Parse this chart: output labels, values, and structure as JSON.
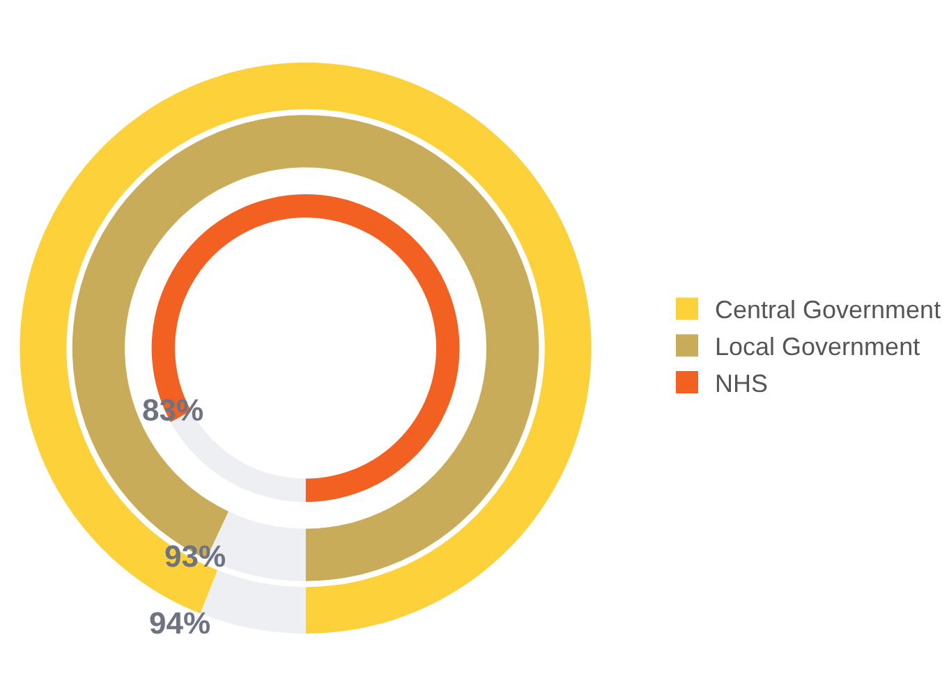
{
  "chart_data": [
    {
      "type": "donut",
      "legend": "right",
      "categories": [
        "Central Government",
        null
      ],
      "colors": [
        "#fdd13a",
        "#eeeff2"
      ],
      "values": [
        94,
        6
      ],
      "value_labels": [
        "94%",
        null
      ]
    },
    {
      "type": "donut",
      "legend": "right",
      "categories": [
        "Local Government",
        null
      ],
      "colors": [
        "#c9ac5a",
        "#eeeff2"
      ],
      "values": [
        93,
        7
      ],
      "value_labels": [
        "93%",
        null
      ]
    },
    {
      "type": "donut",
      "legend": "right",
      "categories": [
        "NHS",
        null
      ],
      "colors": [
        "#f26122",
        "#eeeff2"
      ],
      "values": [
        83,
        17
      ],
      "value_labels": [
        "83%",
        null
      ]
    }
  ]
}
